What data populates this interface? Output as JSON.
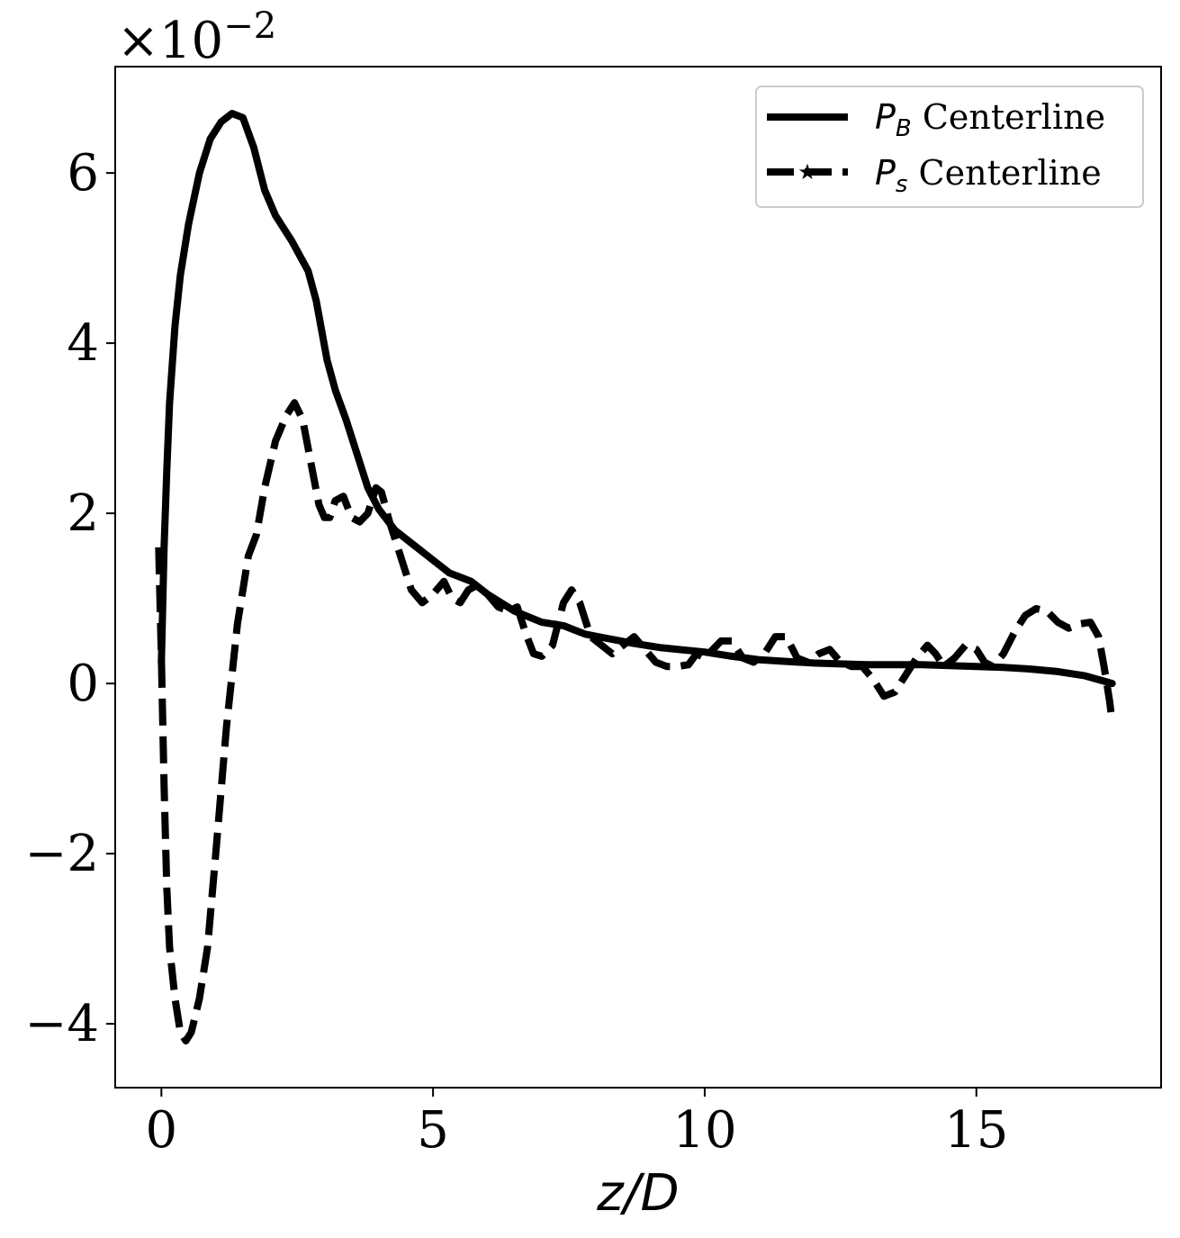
{
  "chart_data": {
    "type": "line",
    "title": "",
    "xlabel": "z/D",
    "ylabel": "",
    "y_multiplier": {
      "base": "×10",
      "exponent": "−2"
    },
    "xlim": [
      -0.85,
      18.4
    ],
    "ylim": [
      -4.75,
      7.25
    ],
    "x_ticks": [
      0,
      5,
      10,
      15
    ],
    "x_tick_labels": [
      "0",
      "5",
      "10",
      "15"
    ],
    "y_ticks": [
      -4,
      -2,
      0,
      2,
      4,
      6
    ],
    "y_tick_labels": [
      "−4",
      "−2",
      "0",
      "2",
      "4",
      "6"
    ],
    "grid": false,
    "legend_position": "top-right",
    "series": [
      {
        "name": "P_B Centerline",
        "legend_symbol": "P",
        "legend_subscript": "B",
        "legend_suffix": " Centerline",
        "style": "solid",
        "color": "#000000",
        "points": [
          [
            0.0,
            0.25
          ],
          [
            0.05,
            1.6
          ],
          [
            0.1,
            2.5
          ],
          [
            0.15,
            3.3
          ],
          [
            0.25,
            4.2
          ],
          [
            0.35,
            4.8
          ],
          [
            0.5,
            5.4
          ],
          [
            0.7,
            6.0
          ],
          [
            0.9,
            6.4
          ],
          [
            1.1,
            6.6
          ],
          [
            1.3,
            6.7
          ],
          [
            1.5,
            6.65
          ],
          [
            1.7,
            6.3
          ],
          [
            1.9,
            5.8
          ],
          [
            2.1,
            5.5
          ],
          [
            2.4,
            5.2
          ],
          [
            2.7,
            4.85
          ],
          [
            2.85,
            4.5
          ],
          [
            3.05,
            3.8
          ],
          [
            3.2,
            3.45
          ],
          [
            3.4,
            3.1
          ],
          [
            3.6,
            2.7
          ],
          [
            3.8,
            2.3
          ],
          [
            4.0,
            2.05
          ],
          [
            4.3,
            1.8
          ],
          [
            4.6,
            1.65
          ],
          [
            5.0,
            1.45
          ],
          [
            5.3,
            1.3
          ],
          [
            5.7,
            1.2
          ],
          [
            6.0,
            1.05
          ],
          [
            6.5,
            0.85
          ],
          [
            7.0,
            0.72
          ],
          [
            7.4,
            0.68
          ],
          [
            7.8,
            0.58
          ],
          [
            8.2,
            0.53
          ],
          [
            8.7,
            0.47
          ],
          [
            9.2,
            0.42
          ],
          [
            10.0,
            0.37
          ],
          [
            10.5,
            0.32
          ],
          [
            11.0,
            0.28
          ],
          [
            11.5,
            0.26
          ],
          [
            12.0,
            0.24
          ],
          [
            12.5,
            0.23
          ],
          [
            13.0,
            0.22
          ],
          [
            13.5,
            0.22
          ],
          [
            14.0,
            0.22
          ],
          [
            14.5,
            0.21
          ],
          [
            15.0,
            0.2
          ],
          [
            15.5,
            0.19
          ],
          [
            16.0,
            0.17
          ],
          [
            16.5,
            0.14
          ],
          [
            17.0,
            0.09
          ],
          [
            17.5,
            0.0
          ]
        ]
      },
      {
        "name": "P_s Centerline",
        "legend_symbol": "P",
        "legend_subscript": "s",
        "legend_suffix": " Centerline",
        "style": "dashed",
        "color": "#000000",
        "points": [
          [
            -0.05,
            1.6
          ],
          [
            0.0,
            0.3
          ],
          [
            0.05,
            -1.2
          ],
          [
            0.1,
            -2.4
          ],
          [
            0.15,
            -3.1
          ],
          [
            0.25,
            -3.7
          ],
          [
            0.35,
            -4.1
          ],
          [
            0.45,
            -4.2
          ],
          [
            0.55,
            -4.1
          ],
          [
            0.7,
            -3.7
          ],
          [
            0.85,
            -3.1
          ],
          [
            1.0,
            -2.0
          ],
          [
            1.2,
            -0.5
          ],
          [
            1.4,
            0.7
          ],
          [
            1.6,
            1.5
          ],
          [
            1.75,
            1.75
          ],
          [
            1.9,
            2.3
          ],
          [
            2.1,
            2.85
          ],
          [
            2.3,
            3.15
          ],
          [
            2.45,
            3.3
          ],
          [
            2.6,
            3.1
          ],
          [
            2.75,
            2.6
          ],
          [
            2.9,
            2.1
          ],
          [
            3.0,
            1.95
          ],
          [
            3.1,
            1.95
          ],
          [
            3.2,
            2.15
          ],
          [
            3.35,
            2.2
          ],
          [
            3.5,
            1.95
          ],
          [
            3.65,
            1.9
          ],
          [
            3.8,
            2.0
          ],
          [
            3.95,
            2.3
          ],
          [
            4.05,
            2.25
          ],
          [
            4.2,
            1.9
          ],
          [
            4.4,
            1.5
          ],
          [
            4.6,
            1.1
          ],
          [
            4.8,
            0.95
          ],
          [
            5.0,
            1.05
          ],
          [
            5.2,
            1.2
          ],
          [
            5.35,
            1.0
          ],
          [
            5.5,
            0.95
          ],
          [
            5.65,
            1.1
          ],
          [
            5.8,
            1.15
          ],
          [
            6.0,
            1.05
          ],
          [
            6.2,
            0.9
          ],
          [
            6.4,
            0.85
          ],
          [
            6.55,
            0.9
          ],
          [
            6.7,
            0.6
          ],
          [
            6.85,
            0.35
          ],
          [
            7.0,
            0.32
          ],
          [
            7.2,
            0.45
          ],
          [
            7.4,
            0.95
          ],
          [
            7.55,
            1.1
          ],
          [
            7.7,
            0.95
          ],
          [
            7.9,
            0.55
          ],
          [
            8.1,
            0.45
          ],
          [
            8.3,
            0.35
          ],
          [
            8.5,
            0.45
          ],
          [
            8.7,
            0.55
          ],
          [
            8.9,
            0.4
          ],
          [
            9.1,
            0.25
          ],
          [
            9.3,
            0.2
          ],
          [
            9.5,
            0.2
          ],
          [
            9.7,
            0.22
          ],
          [
            9.85,
            0.35
          ],
          [
            10.0,
            0.3
          ],
          [
            10.15,
            0.4
          ],
          [
            10.3,
            0.5
          ],
          [
            10.5,
            0.5
          ],
          [
            10.7,
            0.3
          ],
          [
            10.9,
            0.25
          ],
          [
            11.1,
            0.35
          ],
          [
            11.3,
            0.55
          ],
          [
            11.5,
            0.55
          ],
          [
            11.7,
            0.3
          ],
          [
            11.9,
            0.25
          ],
          [
            12.1,
            0.35
          ],
          [
            12.3,
            0.4
          ],
          [
            12.5,
            0.25
          ],
          [
            12.7,
            0.2
          ],
          [
            12.9,
            0.2
          ],
          [
            13.1,
            0.05
          ],
          [
            13.3,
            -0.15
          ],
          [
            13.5,
            -0.1
          ],
          [
            13.7,
            0.1
          ],
          [
            13.9,
            0.3
          ],
          [
            14.1,
            0.45
          ],
          [
            14.25,
            0.35
          ],
          [
            14.4,
            0.2
          ],
          [
            14.6,
            0.3
          ],
          [
            14.8,
            0.45
          ],
          [
            15.0,
            0.4
          ],
          [
            15.15,
            0.25
          ],
          [
            15.3,
            0.2
          ],
          [
            15.5,
            0.35
          ],
          [
            15.7,
            0.6
          ],
          [
            15.9,
            0.8
          ],
          [
            16.1,
            0.88
          ],
          [
            16.3,
            0.85
          ],
          [
            16.5,
            0.72
          ],
          [
            16.7,
            0.65
          ],
          [
            16.9,
            0.7
          ],
          [
            17.1,
            0.72
          ],
          [
            17.25,
            0.55
          ],
          [
            17.35,
            0.2
          ],
          [
            17.45,
            -0.2
          ],
          [
            17.5,
            -0.45
          ]
        ]
      }
    ]
  }
}
